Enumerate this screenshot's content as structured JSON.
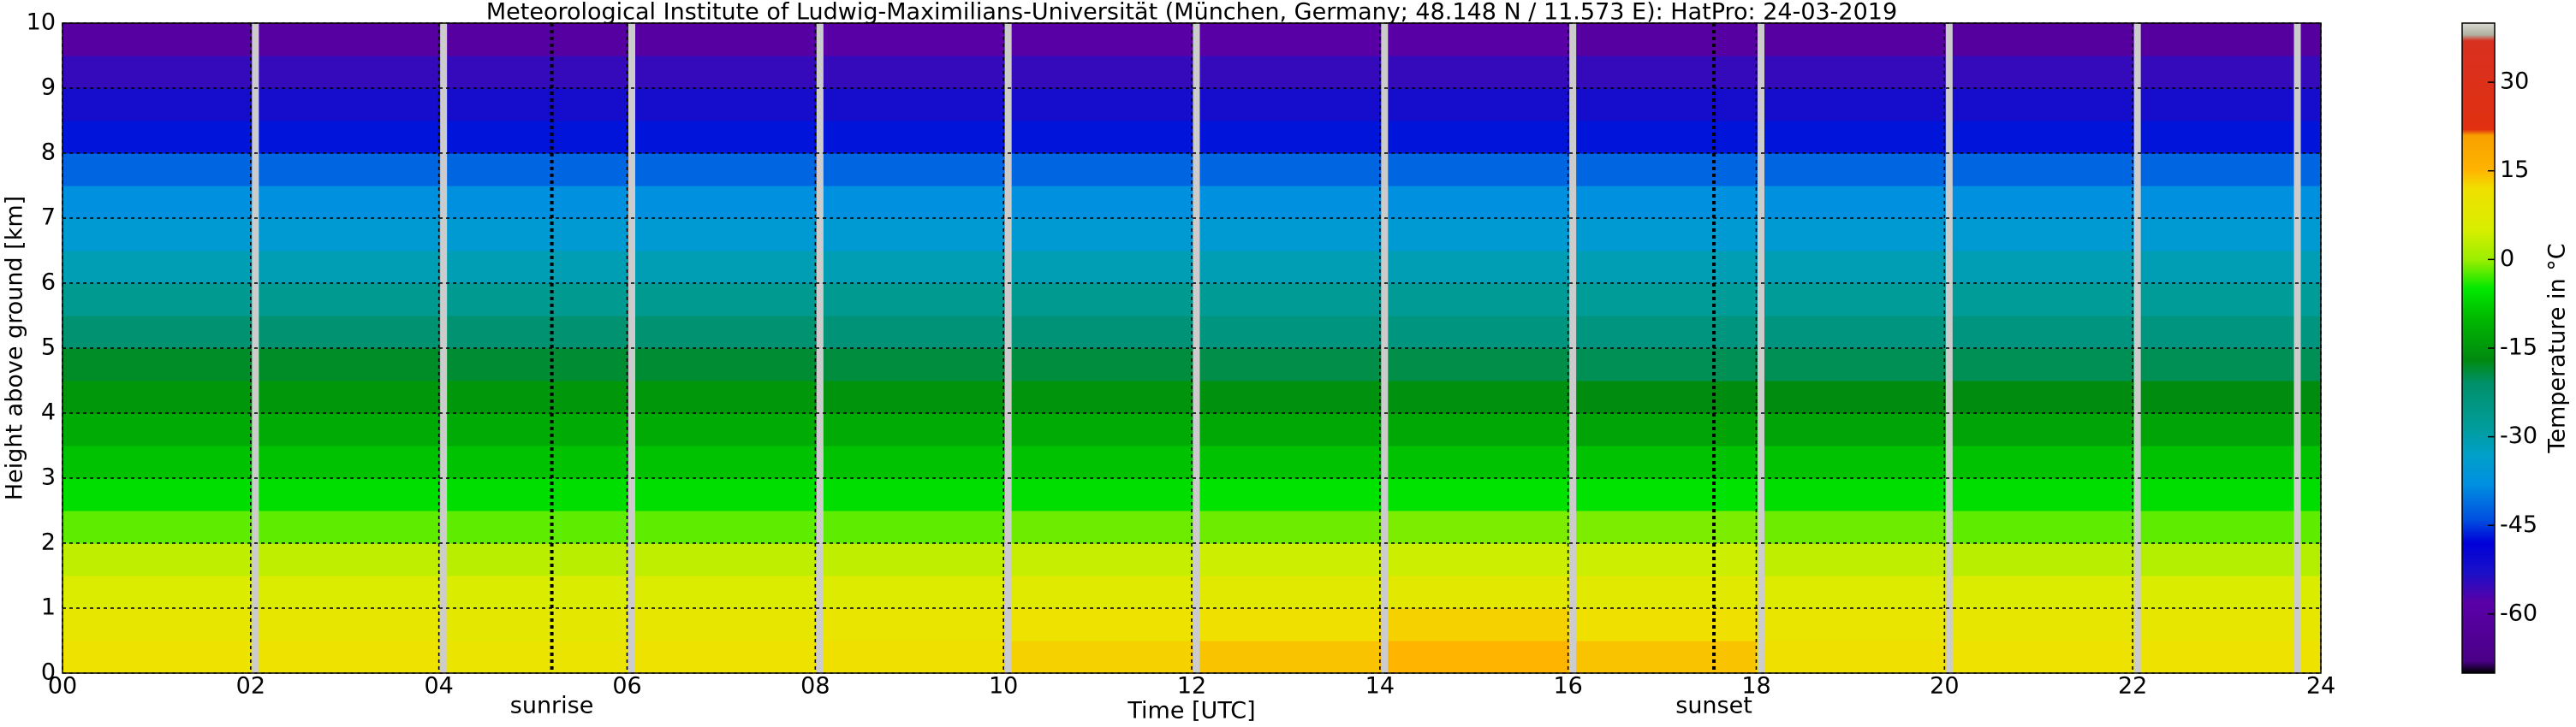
{
  "chart_data": {
    "type": "heatmap",
    "title": "Meteorological Institute of Ludwig-Maximilians-Universität (München, Germany; 48.148 N / 11.573 E):    HatPro: 24-03-2019",
    "x_label": "Time [UTC]",
    "y_label": "Height above ground [km]",
    "colorbar_label": "Temperature in °C",
    "xbins": [
      0,
      2,
      4,
      6,
      8,
      10,
      12,
      14,
      16,
      18,
      20,
      22,
      24
    ],
    "ybins": [
      0,
      0.5,
      1,
      1.5,
      2,
      2.5,
      3,
      3.5,
      4,
      4.5,
      5,
      5.5,
      6,
      6.5,
      7,
      7.5,
      8,
      8.5,
      9,
      9.5,
      10
    ],
    "values": [
      [
        11,
        11,
        10.5,
        11,
        12,
        13,
        14,
        15,
        14,
        12,
        11,
        11
      ],
      [
        9,
        9,
        8.5,
        9,
        10,
        11,
        12,
        13,
        12,
        10,
        9,
        9
      ],
      [
        6,
        6,
        5.5,
        6,
        6.5,
        7,
        7.5,
        8,
        7.5,
        6.5,
        6,
        5.5
      ],
      [
        3,
        3,
        2.5,
        3,
        3,
        3.5,
        4,
        4,
        4,
        3,
        2.5,
        2
      ],
      [
        -2,
        -2,
        -2,
        -2,
        -2,
        -1.5,
        -1.5,
        -1,
        -1,
        -1.5,
        -2,
        -2
      ],
      [
        -6,
        -6,
        -6,
        -6,
        -6,
        -6,
        -5.5,
        -5.5,
        -5.5,
        -6,
        -6,
        -6
      ],
      [
        -9,
        -9,
        -9,
        -9,
        -9,
        -9,
        -9,
        -9,
        -9,
        -9,
        -9,
        -9
      ],
      [
        -12,
        -12,
        -12,
        -12,
        -12,
        -12,
        -12.5,
        -12.5,
        -13,
        -13,
        -13,
        -13
      ],
      [
        -15,
        -15,
        -15,
        -15,
        -15.5,
        -15.5,
        -16,
        -16,
        -16.5,
        -16.5,
        -16.5,
        -16.5
      ],
      [
        -18,
        -18,
        -18.5,
        -18.5,
        -19,
        -19,
        -19.5,
        -19.5,
        -20,
        -20,
        -20,
        -20
      ],
      [
        -22,
        -22,
        -22,
        -22,
        -23,
        -23,
        -24,
        -24,
        -24,
        -24,
        -24,
        -24
      ],
      [
        -27,
        -27,
        -27,
        -27,
        -27,
        -27,
        -27.5,
        -27.5,
        -28,
        -28,
        -28,
        -28
      ],
      [
        -31,
        -31,
        -31,
        -31,
        -31,
        -31,
        -31,
        -31,
        -31,
        -31,
        -31,
        -31
      ],
      [
        -35,
        -35,
        -35,
        -35,
        -35,
        -35,
        -35,
        -35,
        -35,
        -35,
        -35,
        -35
      ],
      [
        -38,
        -38,
        -38,
        -38,
        -38,
        -38,
        -38,
        -38,
        -38,
        -38,
        -38,
        -38
      ],
      [
        -42,
        -42,
        -42,
        -42,
        -42,
        -42,
        -42,
        -42,
        -42,
        -42,
        -42,
        -42
      ],
      [
        -47,
        -47,
        -47,
        -47,
        -47,
        -47,
        -47,
        -47,
        -47,
        -47,
        -47,
        -47
      ],
      [
        -52,
        -52,
        -52,
        -52,
        -52,
        -52,
        -52,
        -52,
        -52,
        -52,
        -52,
        -52
      ],
      [
        -55,
        -55,
        -55,
        -55,
        -55,
        -55,
        -55,
        -55,
        -55,
        -55,
        -55,
        -55
      ],
      [
        -60,
        -60,
        -60,
        -60,
        -59,
        -59,
        -59,
        -59,
        -60,
        -60,
        -61,
        -61
      ]
    ],
    "gaps": [
      2.05,
      4.05,
      6.05,
      8.05,
      10.05,
      12.05,
      14.05,
      16.05,
      18.05,
      20.05,
      22.05,
      23.75
    ],
    "annotations": [
      {
        "text": "sunrise",
        "x": 5.2
      },
      {
        "text": "sunset",
        "x": 17.55
      }
    ],
    "xlim": [
      0,
      24
    ],
    "xticks": [
      {
        "value": 0,
        "label": "00"
      },
      {
        "value": 2,
        "label": "02"
      },
      {
        "value": 4,
        "label": "04"
      },
      {
        "value": 6,
        "label": "06"
      },
      {
        "value": 8,
        "label": "08"
      },
      10,
      12,
      14,
      16,
      18,
      20,
      22,
      24
    ],
    "ylim": [
      0,
      10
    ],
    "yticks": [
      0,
      1,
      2,
      3,
      4,
      5,
      6,
      7,
      8,
      9,
      10
    ],
    "clim": [
      -70,
      40
    ],
    "cticks": [
      30,
      15,
      0,
      -15,
      -30,
      -45,
      -60
    ],
    "colorscale": [
      [
        -70,
        "#000000"
      ],
      [
        -68,
        "#4a0088"
      ],
      [
        -58,
        "#5a00a8"
      ],
      [
        -53,
        "#1a10c8"
      ],
      [
        -48,
        "#0000d8"
      ],
      [
        -44,
        "#0050e0"
      ],
      [
        -38,
        "#0090e0"
      ],
      [
        -33,
        "#00a0c8"
      ],
      [
        -28,
        "#009c98"
      ],
      [
        -21,
        "#00906a"
      ],
      [
        -17,
        "#008a10"
      ],
      [
        -10,
        "#00b800"
      ],
      [
        -5,
        "#00e800"
      ],
      [
        0,
        "#9cee00"
      ],
      [
        5,
        "#d8ee00"
      ],
      [
        12,
        "#f0e000"
      ],
      [
        15,
        "#ffb400"
      ],
      [
        21,
        "#f8a000"
      ],
      [
        22,
        "#e03010"
      ],
      [
        37,
        "#d83020"
      ],
      [
        38,
        "#b0b0a0"
      ],
      [
        40,
        "#d8d8d0"
      ]
    ],
    "grid": true
  }
}
